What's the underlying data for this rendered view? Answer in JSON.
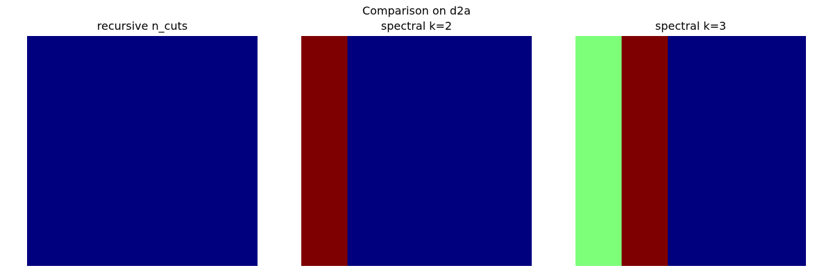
{
  "figure": {
    "title": "Comparison on d2a"
  },
  "colormap": {
    "name": "jet",
    "label_colors": {
      "0": "#00007f",
      "1": "#7f0000",
      "2": "#7dff7a"
    }
  },
  "chart_data": [
    {
      "type": "heatmap",
      "title": "recursive n_cuts",
      "axes": "off",
      "grid": false,
      "columns": [
        {
          "label": 0,
          "width_fraction": 1.0
        }
      ]
    },
    {
      "type": "heatmap",
      "title": "spectral k=2",
      "axes": "off",
      "grid": false,
      "columns": [
        {
          "label": 1,
          "width_fraction": 0.2
        },
        {
          "label": 0,
          "width_fraction": 0.8
        }
      ]
    },
    {
      "type": "heatmap",
      "title": "spectral k=3",
      "axes": "off",
      "grid": false,
      "columns": [
        {
          "label": 2,
          "width_fraction": 0.2
        },
        {
          "label": 1,
          "width_fraction": 0.2
        },
        {
          "label": 0,
          "width_fraction": 0.6
        }
      ]
    }
  ]
}
